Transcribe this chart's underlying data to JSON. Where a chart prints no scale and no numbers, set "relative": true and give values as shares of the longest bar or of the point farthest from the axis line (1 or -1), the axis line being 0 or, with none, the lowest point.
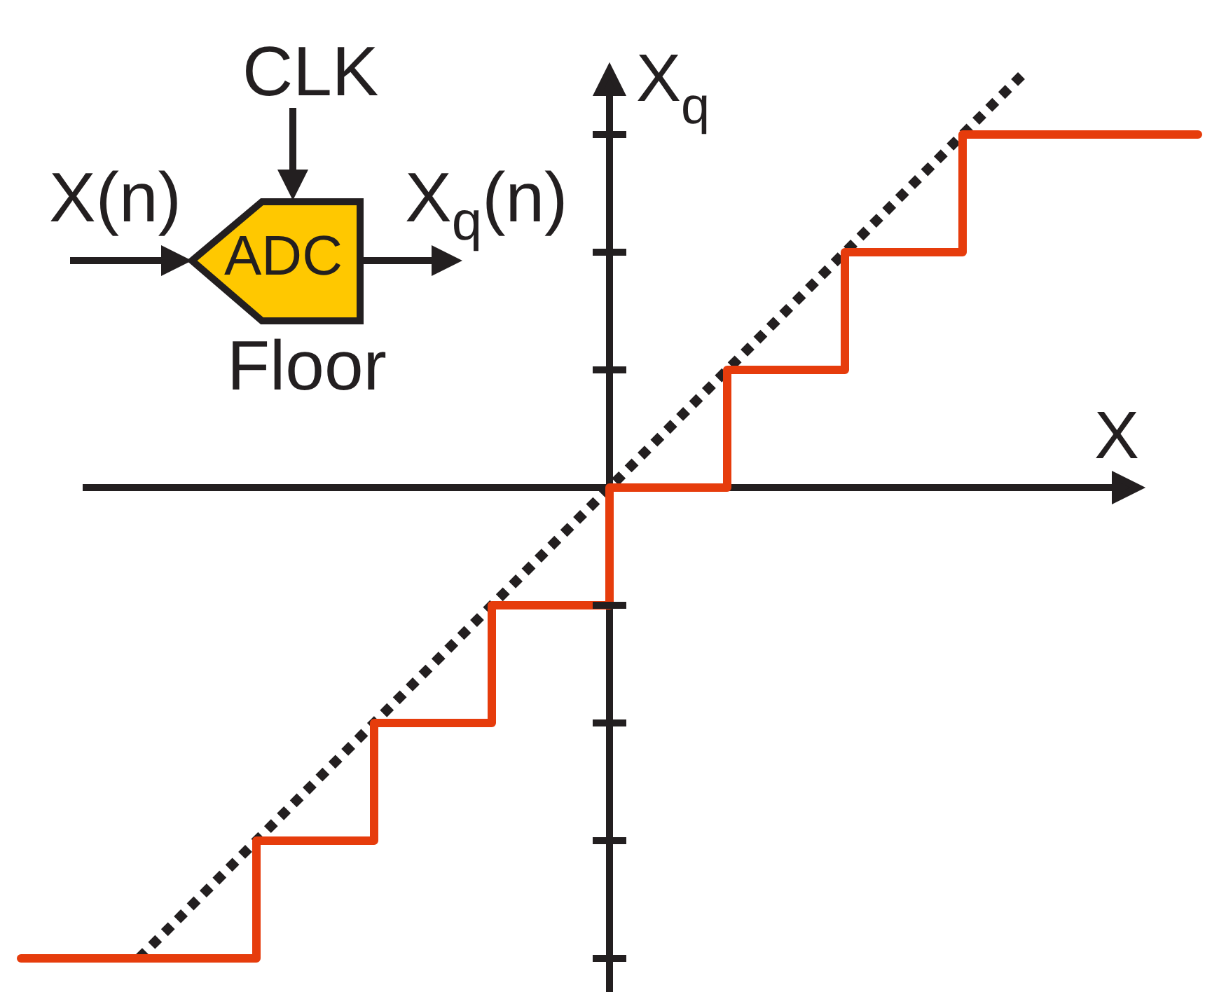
{
  "chart_data": {
    "type": "step",
    "xlabel": "X",
    "ylabel": "X$_{q}$",
    "annotations": [
      "X(n)",
      "CLK",
      "ADC",
      "X$_{q}$(n)",
      "Floor"
    ],
    "categories": [
      null,
      null,
      null,
      null,
      null,
      null,
      null,
      null,
      null,
      null,
      null,
      null,
      null,
      null,
      null,
      null,
      null,
      null,
      null,
      null,
      null
    ],
    "relative": true,
    "marker": "none",
    "series": [
      {
        "color": "#e63c0c",
        "values": [
          -1,
          -1,
          -1,
          -1,
          -0.75,
          -0.75,
          -0.5,
          -0.5,
          -0.25,
          -0.25,
          0,
          0,
          0.25,
          0.25,
          0.5,
          0.5,
          0.75,
          0.75,
          0.75,
          0.75,
          0.75
        ]
      },
      {
        "type": "line",
        "color": "#231f20",
        "line_style": "dotted",
        "values": [
          null,
          null,
          -1,
          -0.875,
          -0.75,
          -0.625,
          -0.5,
          -0.375,
          -0.25,
          -0.125,
          0,
          0.125,
          0.25,
          0.375,
          0.5,
          0.625,
          0.75,
          0.875,
          null,
          null,
          null
        ]
      }
    ]
  }
}
